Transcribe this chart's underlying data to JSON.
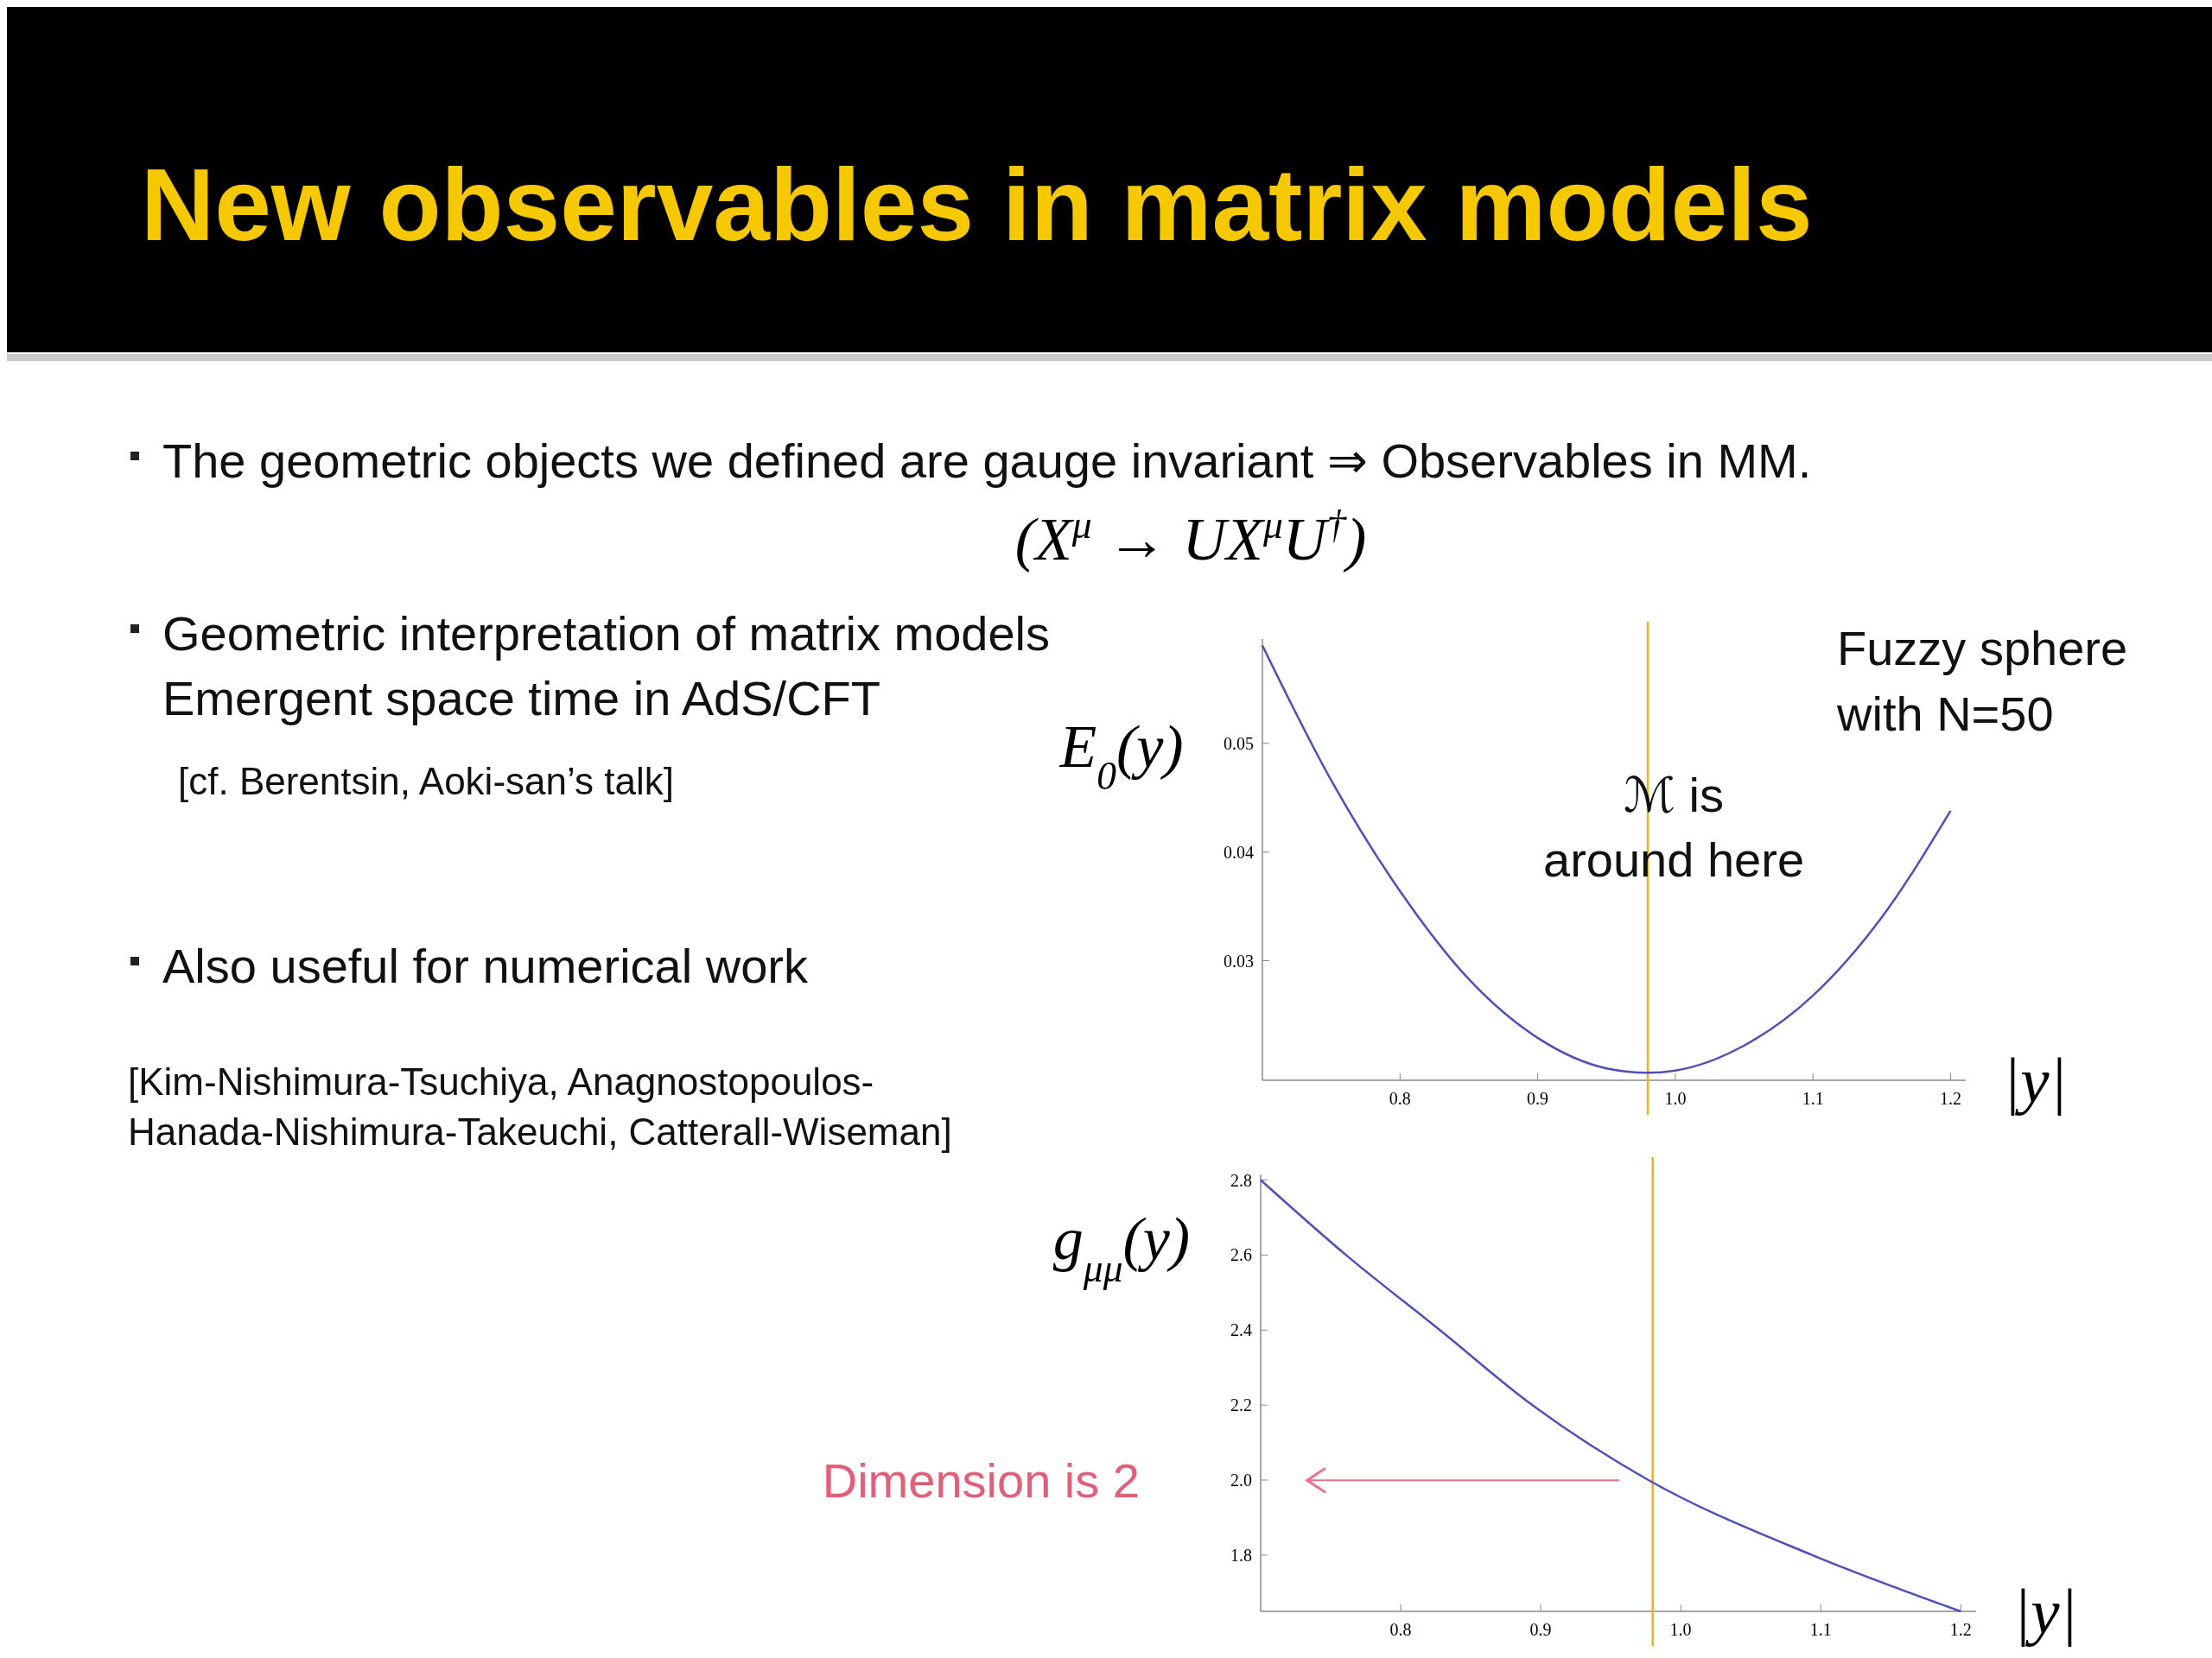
{
  "chart_data": [
    {
      "type": "line",
      "title": "New observables in matrix models",
      "xlabel": "|y|",
      "ylabel": "E$_{0}$(y)",
      "xlim": [
        0.7,
        1.211
      ],
      "xticks": [
        0.8,
        0.9,
        {
          "value": 1,
          "label": "1.0"
        },
        1.1,
        1.2
      ],
      "ylim": [
        0.019,
        0.0596
      ],
      "yticks": [
        0.03,
        0.04,
        0.05
      ],
      "grid": false,
      "x": [
        0.7,
        0.75,
        0.8,
        0.85,
        0.9,
        0.95,
        0.98,
        1.0,
        1.05,
        1.1,
        1.15,
        1.2
      ],
      "series": [
        {
          "color": "#5050b4",
          "values": [
            0.059,
            0.0466,
            0.0364,
            0.0283,
            0.0229,
            0.0201,
            0.0197,
            0.0199,
            0.0222,
            0.0268,
            0.034,
            0.0438
          ]
        }
      ],
      "ref_lines": [
        {
          "axis": "x",
          "value": 0.98,
          "color": "#e8b520"
        }
      ],
      "annotations": [
        "The geometric objects we defined are gauge invariant   ⇒  Observables in MM.",
        "(X$^{μ}$ → UX$^{μ}$U$^{†}$)",
        "Geometric interpretation of matrix models",
        "Emergent space time in AdS/CFT",
        "[cf. Berentsin, Aoki-san’s talk]",
        "Also useful for numerical work",
        "[Kim-Nishimura-Tsuchiya, Anagnostopoulos-",
        "Hanada-Nishimura-Takeuchi, Catterall-Wiseman]",
        "Fuzzy sphere\nwith N=50",
        {
          "text": "ℳ is\naround here",
          "x": 0.98
        }
      ]
    },
    {
      "type": "line",
      "xlabel": "|y|",
      "ylabel": "g$_{μμ}$(y)",
      "xlim": [
        0.7,
        1.211
      ],
      "xticks": [
        0.8,
        0.9,
        {
          "value": 1,
          "label": "1.0"
        },
        1.1,
        1.2
      ],
      "ylim": [
        1.65,
        2.815
      ],
      "yticks": [
        1.8,
        {
          "value": 2,
          "label": "2.0"
        },
        2.2,
        2.4,
        2.6,
        2.8
      ],
      "grid": false,
      "series": [
        {
          "color": "#5050b4",
          "x": [
            0.7,
            0.761,
            0.828,
            0.894,
            0.977,
            1.094,
            1.2
          ],
          "values": [
            2.8,
            2.6,
            2.4,
            2.2,
            2.0,
            1.8,
            1.65
          ]
        }
      ],
      "ref_lines": [
        {
          "axis": "x",
          "value": 0.98,
          "color": "#e8b520"
        }
      ],
      "annotations": [
        "Dimension is 2"
      ]
    }
  ]
}
